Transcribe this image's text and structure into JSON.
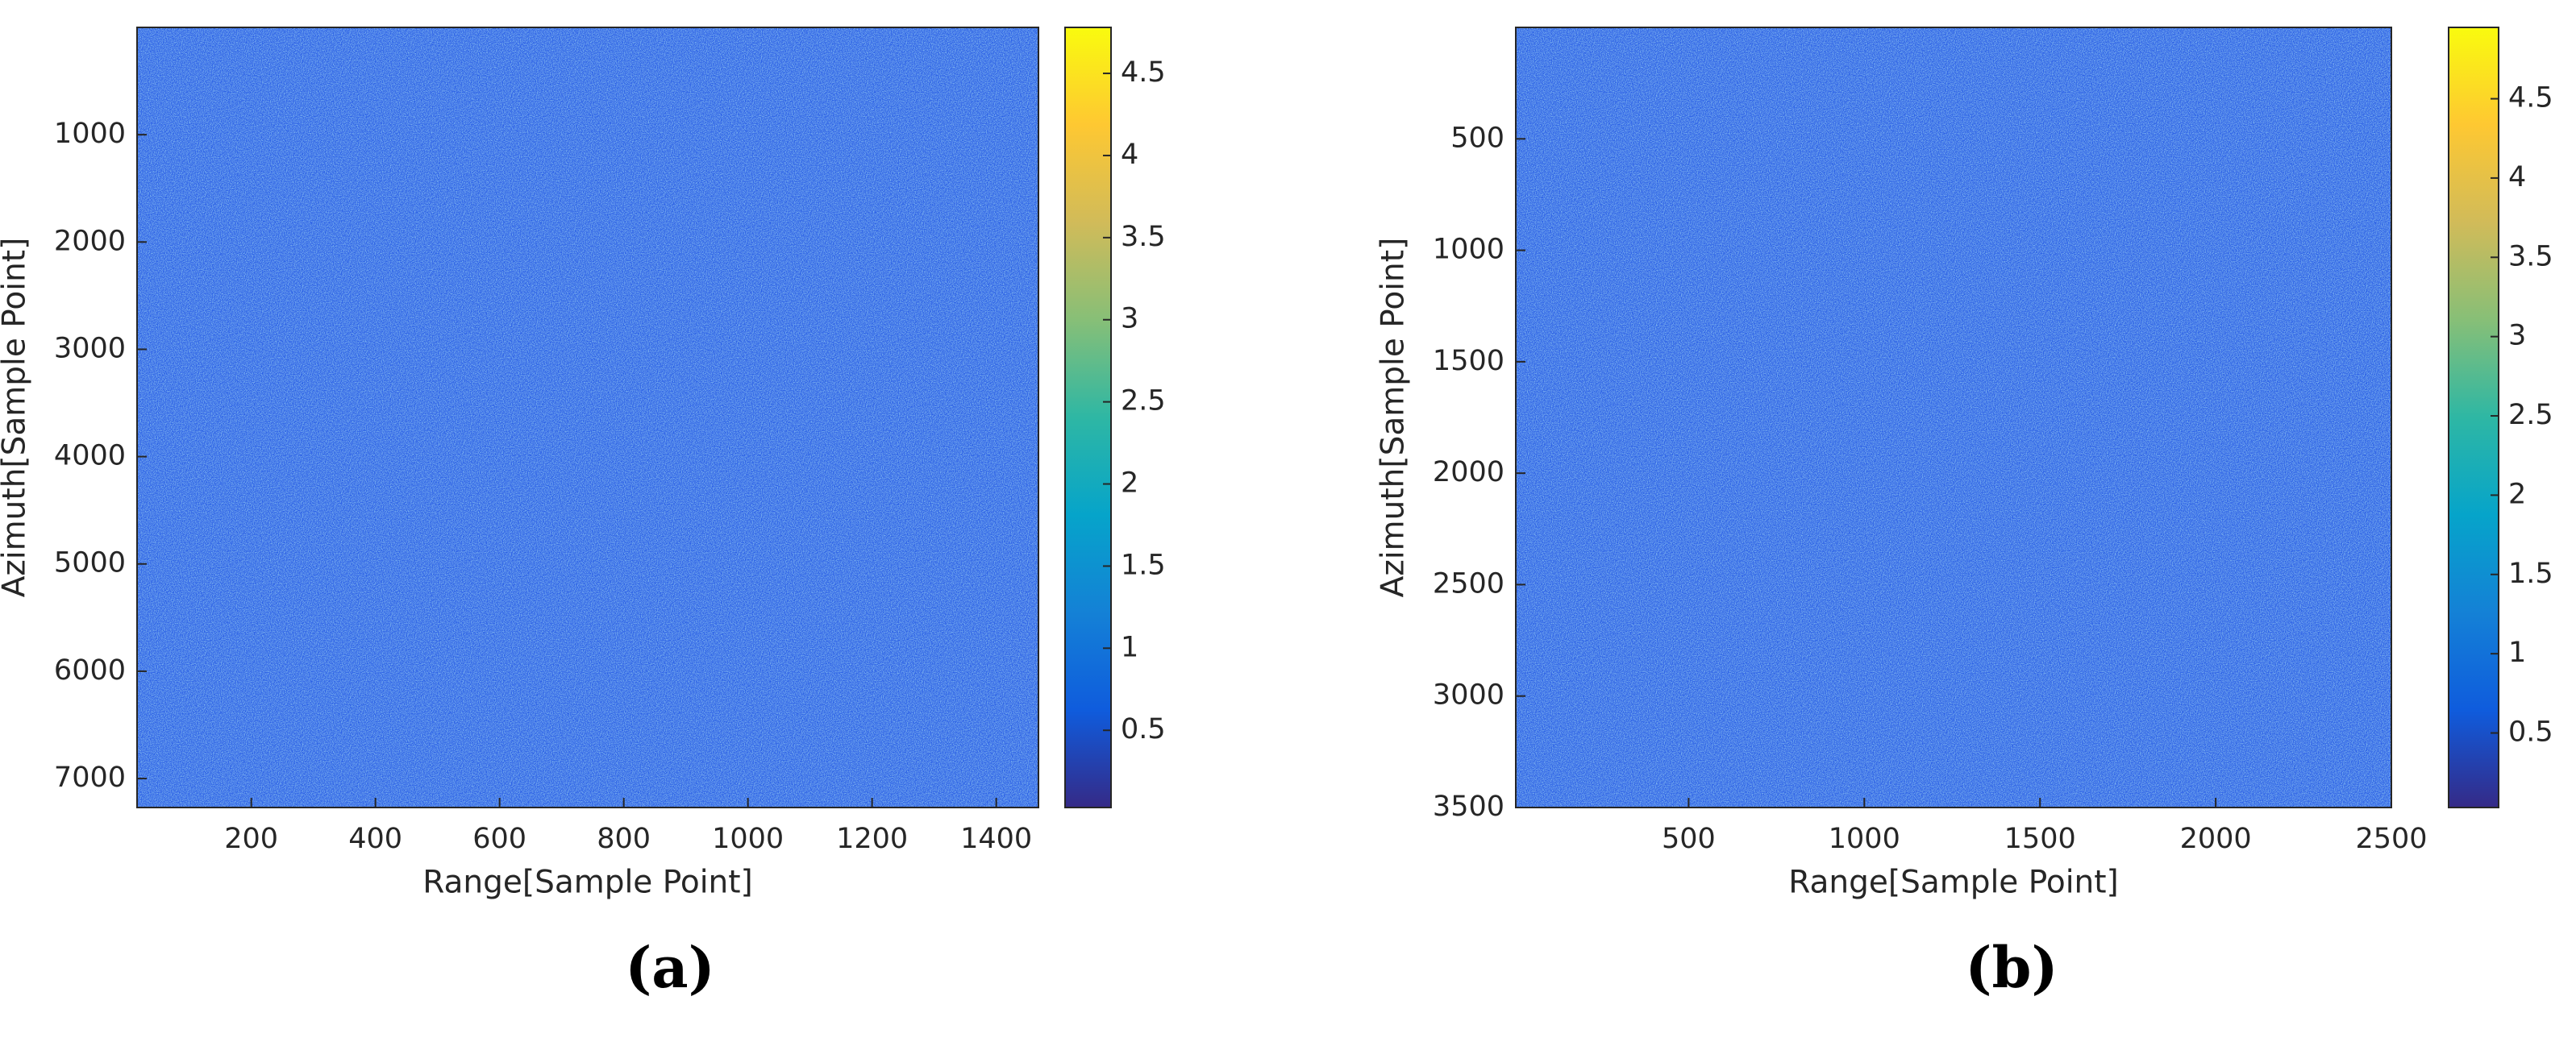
{
  "chart_data": [
    {
      "type": "heatmap",
      "panel_label": "(a)",
      "xlabel": "Range[Sample Point]",
      "ylabel": "Azimuth[Sample Point]",
      "xlim": [
        16,
        1468
      ],
      "xticks": [
        200,
        400,
        600,
        800,
        1000,
        1200,
        1400
      ],
      "ylim": [
        0,
        7270
      ],
      "yticks": [
        1000,
        2000,
        3000,
        4000,
        5000,
        6000,
        7000
      ],
      "y_reversed": true,
      "colormap": "parula",
      "clim": [
        0.03,
        4.78
      ],
      "cticks": [
        0.5,
        1,
        1.5,
        2,
        2.5,
        3,
        3.5,
        4,
        4.5
      ]
    },
    {
      "type": "heatmap",
      "panel_label": "(b)",
      "xlabel": "Range[Sample Point]",
      "ylabel": "Azimuth[Sample Point]",
      "xlim": [
        8,
        2500
      ],
      "xticks": [
        500,
        1000,
        1500,
        2000,
        2500
      ],
      "ylim": [
        0,
        3500
      ],
      "yticks": [
        500,
        1000,
        1500,
        2000,
        2500,
        3000,
        3500
      ],
      "y_reversed": true,
      "colormap": "parula",
      "clim": [
        0.03,
        4.95
      ],
      "cticks": [
        0.5,
        1,
        1.5,
        2,
        2.5,
        3,
        3.5,
        4,
        4.5
      ]
    }
  ]
}
